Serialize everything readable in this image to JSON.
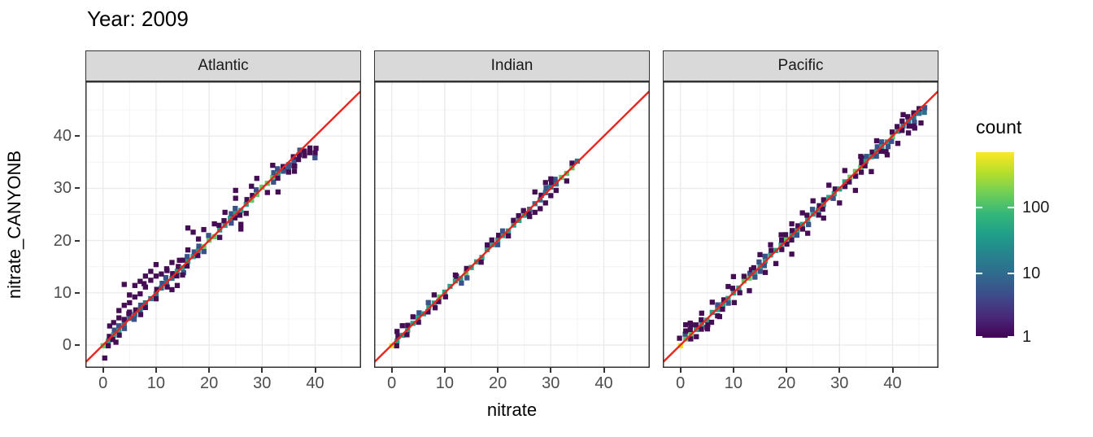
{
  "background": "#ffffff",
  "chart_data": {
    "type": "heatmap",
    "subtype": "geom_bin2d_facets",
    "title": "Year: 2009",
    "xlabel": "nitrate",
    "ylabel": "nitrate_CANYONB",
    "x_ticks": [
      0,
      10,
      20,
      30,
      40
    ],
    "y_ticks": [
      0,
      10,
      20,
      30,
      40
    ],
    "x_minor_ticks": [
      5,
      15,
      25,
      35,
      45
    ],
    "y_minor_ticks": [
      5,
      15,
      25,
      35,
      45
    ],
    "x_range": [
      -3.3,
      48.7
    ],
    "y_range": [
      -4.4,
      50.5
    ],
    "grid": "on",
    "panel": {
      "bg": "#ffffff",
      "grid_major": "#ebebeb",
      "grid_minor": "#f4f4f4",
      "border": "#333333"
    },
    "strip_bg": "#d9d9d9",
    "identity_line": {
      "equation": "y = x",
      "color": "#e8251f",
      "width": 2.4
    },
    "bin_size_units": 1,
    "palette": {
      "1": "#450d54",
      "2": "#3b528b",
      "3": "#2c728e",
      "4": "#25a186",
      "5": "#5ec962",
      "6": "#dde318"
    },
    "legend": {
      "title": "count",
      "scale": "log10",
      "position": "right",
      "ticks": [
        {
          "label": "100",
          "frac_from_top": 0.294
        },
        {
          "label": "10",
          "frac_from_top": 0.649
        },
        {
          "label": "1",
          "frac_from_top": 0.996
        }
      ],
      "viridis_stops": [
        {
          "color": "#440154",
          "pos": 0.0
        },
        {
          "color": "#482878",
          "pos": 0.111
        },
        {
          "color": "#3e4a89",
          "pos": 0.222
        },
        {
          "color": "#31688e",
          "pos": 0.333
        },
        {
          "color": "#26828e",
          "pos": 0.444
        },
        {
          "color": "#1f9e89",
          "pos": 0.556
        },
        {
          "color": "#35b779",
          "pos": 0.667
        },
        {
          "color": "#6ece58",
          "pos": 0.778
        },
        {
          "color": "#b5de2b",
          "pos": 0.889
        },
        {
          "color": "#fde725",
          "pos": 1.0
        }
      ]
    },
    "facets": [
      {
        "label": "Atlantic",
        "seed": 7,
        "diag_to": 40,
        "drift": [
          [
            0,
            0
          ],
          [
            31,
            0
          ],
          [
            35,
            -0.7
          ],
          [
            37,
            -0.8
          ],
          [
            38,
            -1.5
          ],
          [
            40,
            -3.1
          ]
        ],
        "center_levels": [
          [
            0,
            0,
            5
          ],
          [
            1,
            3,
            4
          ],
          [
            4,
            13,
            3
          ],
          [
            14,
            33,
            4
          ],
          [
            34,
            36,
            2
          ],
          [
            37,
            40,
            1
          ]
        ],
        "green_spots": [
          19,
          20,
          21,
          28,
          29,
          30,
          31,
          32
        ],
        "band_above_p": 0.75,
        "band_below_p": 0.55,
        "spread": [
          [
            0,
            13,
            2.4,
            0.9
          ],
          [
            14,
            30,
            1.3,
            0.2
          ],
          [
            31,
            40,
            1.2,
            -0.2
          ]
        ],
        "outliers": [
          [
            2,
            4.3
          ],
          [
            3,
            5.2
          ],
          [
            3,
            6.6
          ],
          [
            4,
            7.6
          ],
          [
            4,
            4.9
          ],
          [
            5,
            8.1
          ],
          [
            4,
            11.6
          ],
          [
            5,
            6.3
          ],
          [
            6,
            9.2
          ],
          [
            6,
            11.4
          ],
          [
            7,
            12.2
          ],
          [
            7,
            9.8
          ],
          [
            8,
            11.1
          ],
          [
            8,
            13.2
          ],
          [
            9,
            12.4
          ],
          [
            9,
            14.1
          ],
          [
            10,
            13.2
          ],
          [
            10,
            15.4
          ],
          [
            11,
            13.6
          ],
          [
            12,
            14.6
          ],
          [
            13,
            10.6
          ],
          [
            14,
            11.4
          ],
          [
            13,
            15.8
          ],
          [
            15,
            13.4
          ],
          [
            16,
            18.2
          ],
          [
            16,
            22.4
          ],
          [
            17,
            21.6
          ],
          [
            18,
            20.3
          ],
          [
            19,
            22.1
          ],
          [
            21,
            23.2
          ],
          [
            22,
            20.6
          ],
          [
            23,
            25.4
          ],
          [
            25,
            28.1
          ],
          [
            25,
            29.6
          ],
          [
            26,
            22.2
          ],
          [
            26,
            23.1
          ],
          [
            27,
            25.2
          ],
          [
            28,
            30.4
          ],
          [
            29,
            31.9
          ],
          [
            31,
            29.2
          ],
          [
            32,
            34.4
          ],
          [
            33,
            29.3
          ],
          [
            35,
            33.1
          ],
          [
            36,
            34.3
          ]
        ]
      },
      {
        "label": "Indian",
        "seed": 13,
        "diag_to": 35,
        "drift": [
          [
            0,
            0
          ],
          [
            35,
            0
          ]
        ],
        "center_levels": [
          [
            0,
            0,
            6
          ],
          [
            1,
            25,
            4
          ],
          [
            26,
            31,
            3
          ],
          [
            32,
            34,
            5
          ],
          [
            35,
            35,
            3
          ]
        ],
        "green_spots": [
          9,
          14,
          32,
          33,
          34
        ],
        "band_above_p": 0.45,
        "band_below_p": 0.35,
        "spread": [
          [
            0,
            35,
            0.9,
            0.1
          ]
        ],
        "outliers": [
          [
            1,
            2.6
          ],
          [
            2,
            3.7
          ],
          [
            4,
            5.4
          ],
          [
            8,
            9.6
          ],
          [
            12,
            13.4
          ],
          [
            22,
            20.9
          ],
          [
            26,
            24.6
          ],
          [
            27,
            25.4
          ],
          [
            27,
            29.3
          ],
          [
            28,
            26.1
          ],
          [
            29,
            27.2
          ],
          [
            29,
            31.1
          ],
          [
            30,
            28.6
          ],
          [
            30,
            31.8
          ],
          [
            31,
            29.6
          ],
          [
            33,
            31.4
          ]
        ]
      },
      {
        "label": "Pacific",
        "seed": 29,
        "diag_to": 46,
        "drift": [
          [
            0,
            0
          ],
          [
            42,
            0
          ],
          [
            44,
            -0.4
          ],
          [
            46,
            -1.2
          ]
        ],
        "center_levels": [
          [
            0,
            0,
            6
          ],
          [
            1,
            2,
            5
          ],
          [
            3,
            41,
            4
          ],
          [
            42,
            46,
            3
          ]
        ],
        "green_spots": [
          12,
          13,
          20,
          32,
          33,
          34,
          40
        ],
        "band_above_p": 0.7,
        "band_below_p": 0.6,
        "spread": [
          [
            0,
            8,
            1.8,
            0.3
          ],
          [
            9,
            46,
            1.4,
            0
          ]
        ],
        "outliers": [
          [
            1,
            2.7
          ],
          [
            2,
            3.9
          ],
          [
            3,
            1.6
          ],
          [
            4,
            6.1
          ],
          [
            5,
            3.4
          ],
          [
            6,
            8.2
          ],
          [
            7,
            5.6
          ],
          [
            9,
            11.2
          ],
          [
            10,
            13.1
          ],
          [
            13,
            10.4
          ],
          [
            15,
            17.3
          ],
          [
            16,
            13.9
          ],
          [
            17,
            19.2
          ],
          [
            18,
            15.6
          ],
          [
            19,
            21.1
          ],
          [
            21,
            17.4
          ],
          [
            21,
            23.2
          ],
          [
            23,
            25.3
          ],
          [
            24,
            21.4
          ],
          [
            25,
            27.6
          ],
          [
            27,
            24.3
          ],
          [
            28,
            30.6
          ],
          [
            30,
            27.2
          ],
          [
            31,
            33.4
          ],
          [
            33,
            29.6
          ],
          [
            34,
            36.1
          ],
          [
            36,
            33.2
          ],
          [
            37,
            39.1
          ],
          [
            39,
            36.4
          ],
          [
            41,
            38.6
          ],
          [
            42,
            44.1
          ],
          [
            43,
            40.6
          ],
          [
            44,
            41.9
          ]
        ]
      }
    ]
  }
}
